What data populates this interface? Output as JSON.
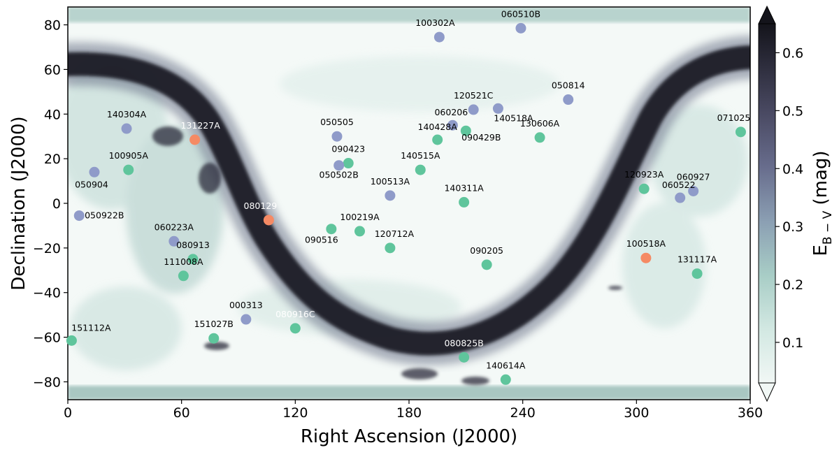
{
  "chart_data": {
    "type": "scatter",
    "xlabel": "Right Ascension (J2000)",
    "ylabel": "Declination (J2000)",
    "xlim": [
      0,
      360
    ],
    "ylim": [
      -88,
      88
    ],
    "xticks": [
      0,
      60,
      120,
      180,
      240,
      300,
      360
    ],
    "yticks": [
      -80,
      -60,
      -40,
      -20,
      0,
      20,
      40,
      60,
      80
    ],
    "grid": false,
    "background_map": "Galactic dust reddening E(B-V) sky map",
    "colorbar": {
      "label": "E",
      "label_sub": "B − V",
      "label_unit": " (mag)",
      "range": [
        0.03,
        0.65
      ],
      "ticks": [
        0.1,
        0.2,
        0.3,
        0.4,
        0.5,
        0.6
      ],
      "extend": "both"
    },
    "colors": {
      "blue": "#8f9bc9",
      "green": "#5fc59c",
      "orange": "#f58a64",
      "dust_low": "#f1f7f5",
      "dust_high": "#14141b"
    },
    "points": [
      {
        "name": "060510B",
        "ra": 239,
        "dec": 78.5,
        "group": "blue"
      },
      {
        "name": "100302A",
        "ra": 196,
        "dec": 74.5,
        "group": "blue"
      },
      {
        "name": "050814",
        "ra": 264,
        "dec": 46.5,
        "group": "blue"
      },
      {
        "name": "120521C",
        "ra": 214,
        "dec": 42,
        "group": "blue"
      },
      {
        "name": "140518A",
        "ra": 227,
        "dec": 42.5,
        "group": "blue"
      },
      {
        "name": "060206",
        "ra": 203,
        "dec": 35,
        "group": "blue"
      },
      {
        "name": "140428A",
        "ra": 195,
        "dec": 28.5,
        "group": "green"
      },
      {
        "name": "090429B",
        "ra": 210,
        "dec": 32.5,
        "group": "green"
      },
      {
        "name": "130606A",
        "ra": 249,
        "dec": 29.5,
        "group": "green"
      },
      {
        "name": "071025",
        "ra": 355,
        "dec": 32,
        "group": "green"
      },
      {
        "name": "140304A",
        "ra": 31,
        "dec": 33.5,
        "group": "blue"
      },
      {
        "name": "131227A",
        "ra": 67,
        "dec": 28.5,
        "group": "orange"
      },
      {
        "name": "050505",
        "ra": 142,
        "dec": 30,
        "group": "blue"
      },
      {
        "name": "090423",
        "ra": 148,
        "dec": 18,
        "group": "green"
      },
      {
        "name": "050502B",
        "ra": 143,
        "dec": 17,
        "group": "blue"
      },
      {
        "name": "140515A",
        "ra": 186,
        "dec": 15,
        "group": "green"
      },
      {
        "name": "100905A",
        "ra": 32,
        "dec": 15,
        "group": "green"
      },
      {
        "name": "050904",
        "ra": 14,
        "dec": 14,
        "group": "blue"
      },
      {
        "name": "120923A",
        "ra": 304,
        "dec": 6.5,
        "group": "green"
      },
      {
        "name": "060927",
        "ra": 330,
        "dec": 5.5,
        "group": "blue"
      },
      {
        "name": "060522",
        "ra": 323,
        "dec": 2.5,
        "group": "blue"
      },
      {
        "name": "100513A",
        "ra": 170,
        "dec": 3.5,
        "group": "blue"
      },
      {
        "name": "140311A",
        "ra": 209,
        "dec": 0.5,
        "group": "green"
      },
      {
        "name": "050922B",
        "ra": 6,
        "dec": -5.5,
        "group": "blue"
      },
      {
        "name": "080129",
        "ra": 106,
        "dec": -7.5,
        "group": "orange"
      },
      {
        "name": "100219A",
        "ra": 154,
        "dec": -12.5,
        "group": "green"
      },
      {
        "name": "090516",
        "ra": 139,
        "dec": -11.5,
        "group": "green"
      },
      {
        "name": "120712A",
        "ra": 170,
        "dec": -20,
        "group": "green"
      },
      {
        "name": "060223A",
        "ra": 56,
        "dec": -17,
        "group": "blue"
      },
      {
        "name": "080913",
        "ra": 66,
        "dec": -25,
        "group": "green"
      },
      {
        "name": "111008A",
        "ra": 61,
        "dec": -32.5,
        "group": "green"
      },
      {
        "name": "090205",
        "ra": 221,
        "dec": -27.5,
        "group": "green"
      },
      {
        "name": "100518A",
        "ra": 305,
        "dec": -24.5,
        "group": "orange"
      },
      {
        "name": "131117A",
        "ra": 332,
        "dec": -31.5,
        "group": "green"
      },
      {
        "name": "000313",
        "ra": 94,
        "dec": -52,
        "group": "blue"
      },
      {
        "name": "080916C",
        "ra": 120,
        "dec": -56,
        "group": "green"
      },
      {
        "name": "151027B",
        "ra": 77,
        "dec": -60.5,
        "group": "green"
      },
      {
        "name": "151112A",
        "ra": 2,
        "dec": -61.5,
        "group": "green"
      },
      {
        "name": "080825B",
        "ra": 209,
        "dec": -69,
        "group": "green"
      },
      {
        "name": "140614A",
        "ra": 231,
        "dec": -79,
        "group": "green"
      }
    ]
  }
}
